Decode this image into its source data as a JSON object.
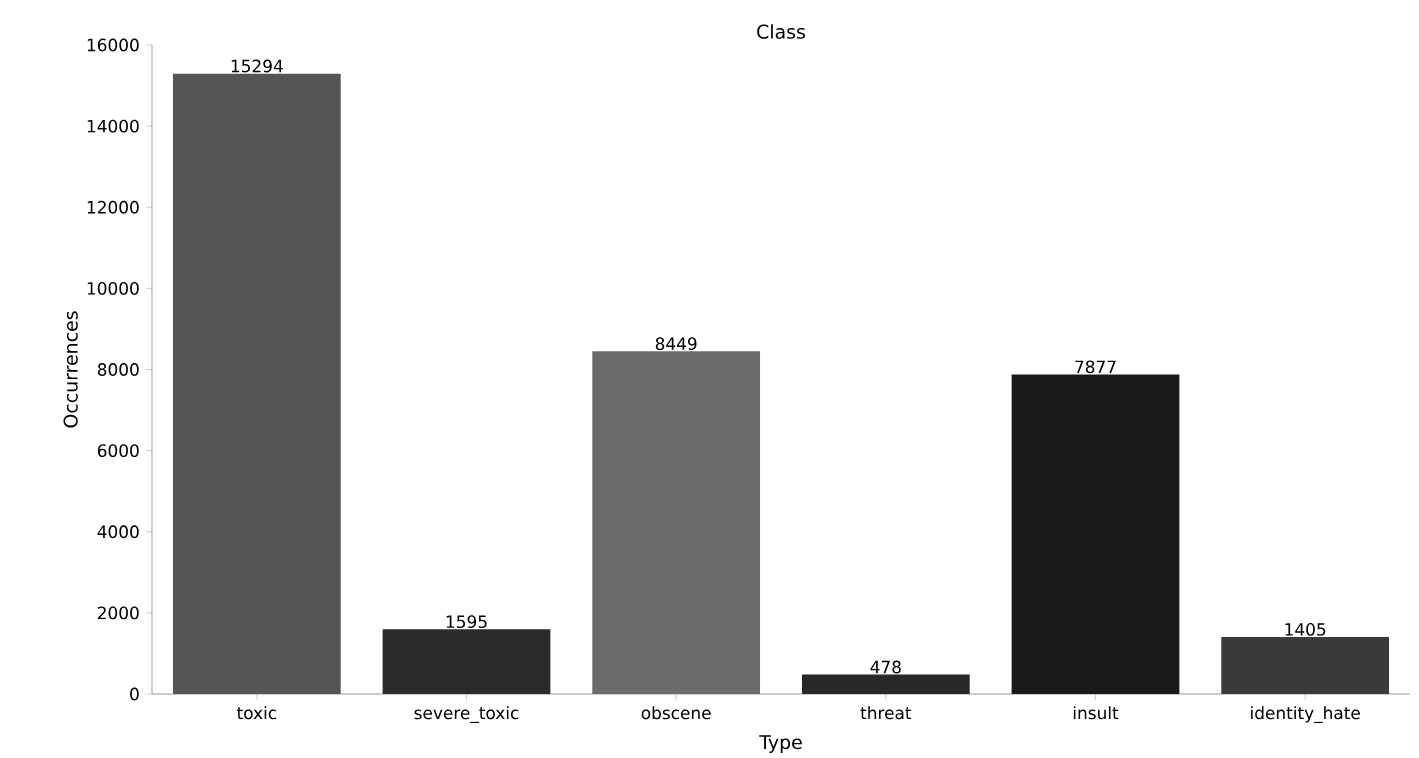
{
  "chart_data": {
    "type": "bar",
    "title": "Class",
    "xlabel": "Type",
    "ylabel": "Occurrences",
    "categories": [
      "toxic",
      "severe_toxic",
      "obscene",
      "threat",
      "insult",
      "identity_hate"
    ],
    "values": [
      15294,
      1595,
      8449,
      478,
      7877,
      1405
    ],
    "colors": [
      "#555555",
      "#2b2b2b",
      "#6b6b6b",
      "#282828",
      "#1a1a1a",
      "#3a3a3a"
    ],
    "ylim": [
      0,
      16000
    ],
    "yticks": [
      0,
      2000,
      4000,
      6000,
      8000,
      10000,
      12000,
      14000,
      16000
    ],
    "data_labels": true
  }
}
